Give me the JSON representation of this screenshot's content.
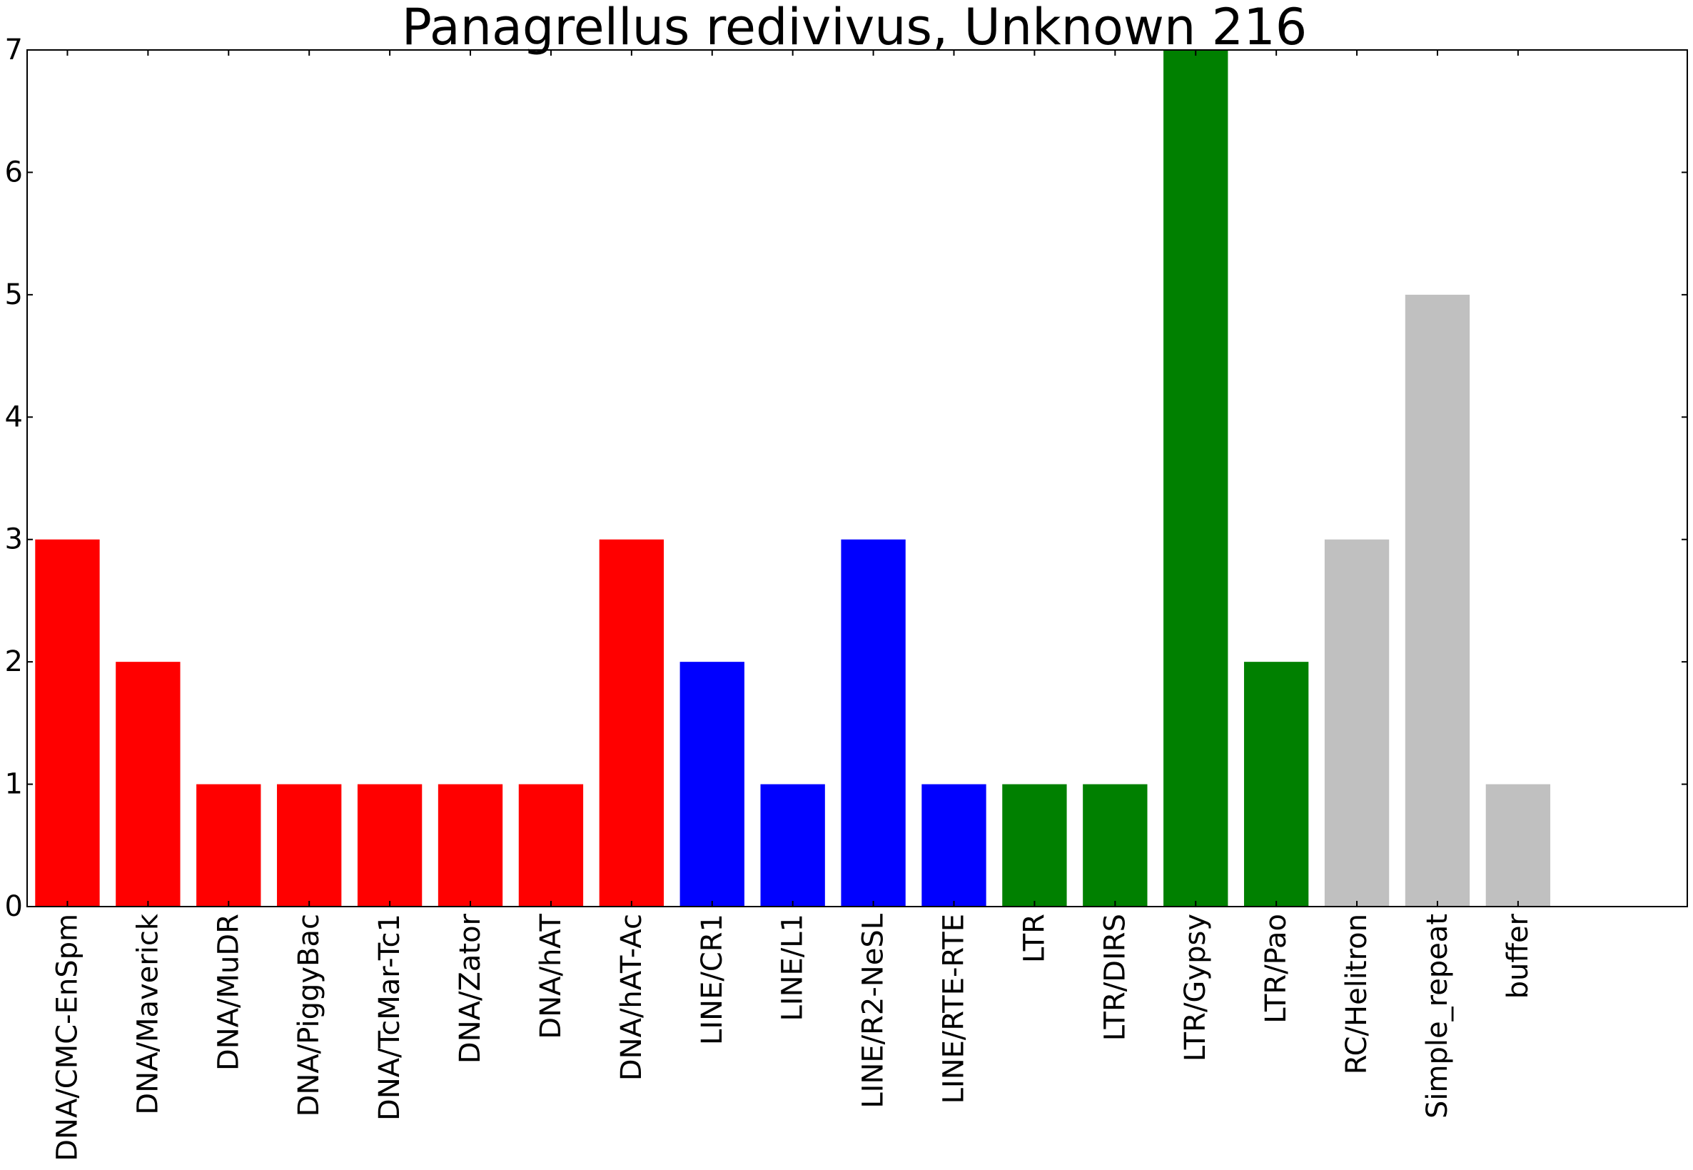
{
  "chart_data": {
    "type": "bar",
    "title": "Panagrellus redivivus, Unknown 216",
    "xlabel": "",
    "ylabel": "",
    "categories": [
      "DNA/CMC-EnSpm",
      "DNA/Maverick",
      "DNA/MuDR",
      "DNA/PiggyBac",
      "DNA/TcMar-Tc1",
      "DNA/Zator",
      "DNA/hAT",
      "DNA/hAT-Ac",
      "LINE/CR1",
      "LINE/L1",
      "LINE/R2-NeSL",
      "LINE/RTE-RTE",
      "LTR",
      "LTR/DIRS",
      "LTR/Gypsy",
      "LTR/Pao",
      "RC/Helitron",
      "Simple_repeat",
      "buffer"
    ],
    "values": [
      3,
      2,
      1,
      1,
      1,
      1,
      1,
      3,
      2,
      1,
      3,
      1,
      1,
      1,
      7,
      2,
      3,
      5,
      1
    ],
    "colors": [
      "#ff0000",
      "#ff0000",
      "#ff0000",
      "#ff0000",
      "#ff0000",
      "#ff0000",
      "#ff0000",
      "#ff0000",
      "#0000ff",
      "#0000ff",
      "#0000ff",
      "#0000ff",
      "#008000",
      "#008000",
      "#008000",
      "#008000",
      "#c0c0c0",
      "#c0c0c0",
      "#c0c0c0"
    ],
    "ylim": [
      0,
      7
    ],
    "yticks": [
      "0",
      "1",
      "2",
      "3",
      "4",
      "5",
      "6",
      "7"
    ],
    "grid": false,
    "legend": "none"
  }
}
